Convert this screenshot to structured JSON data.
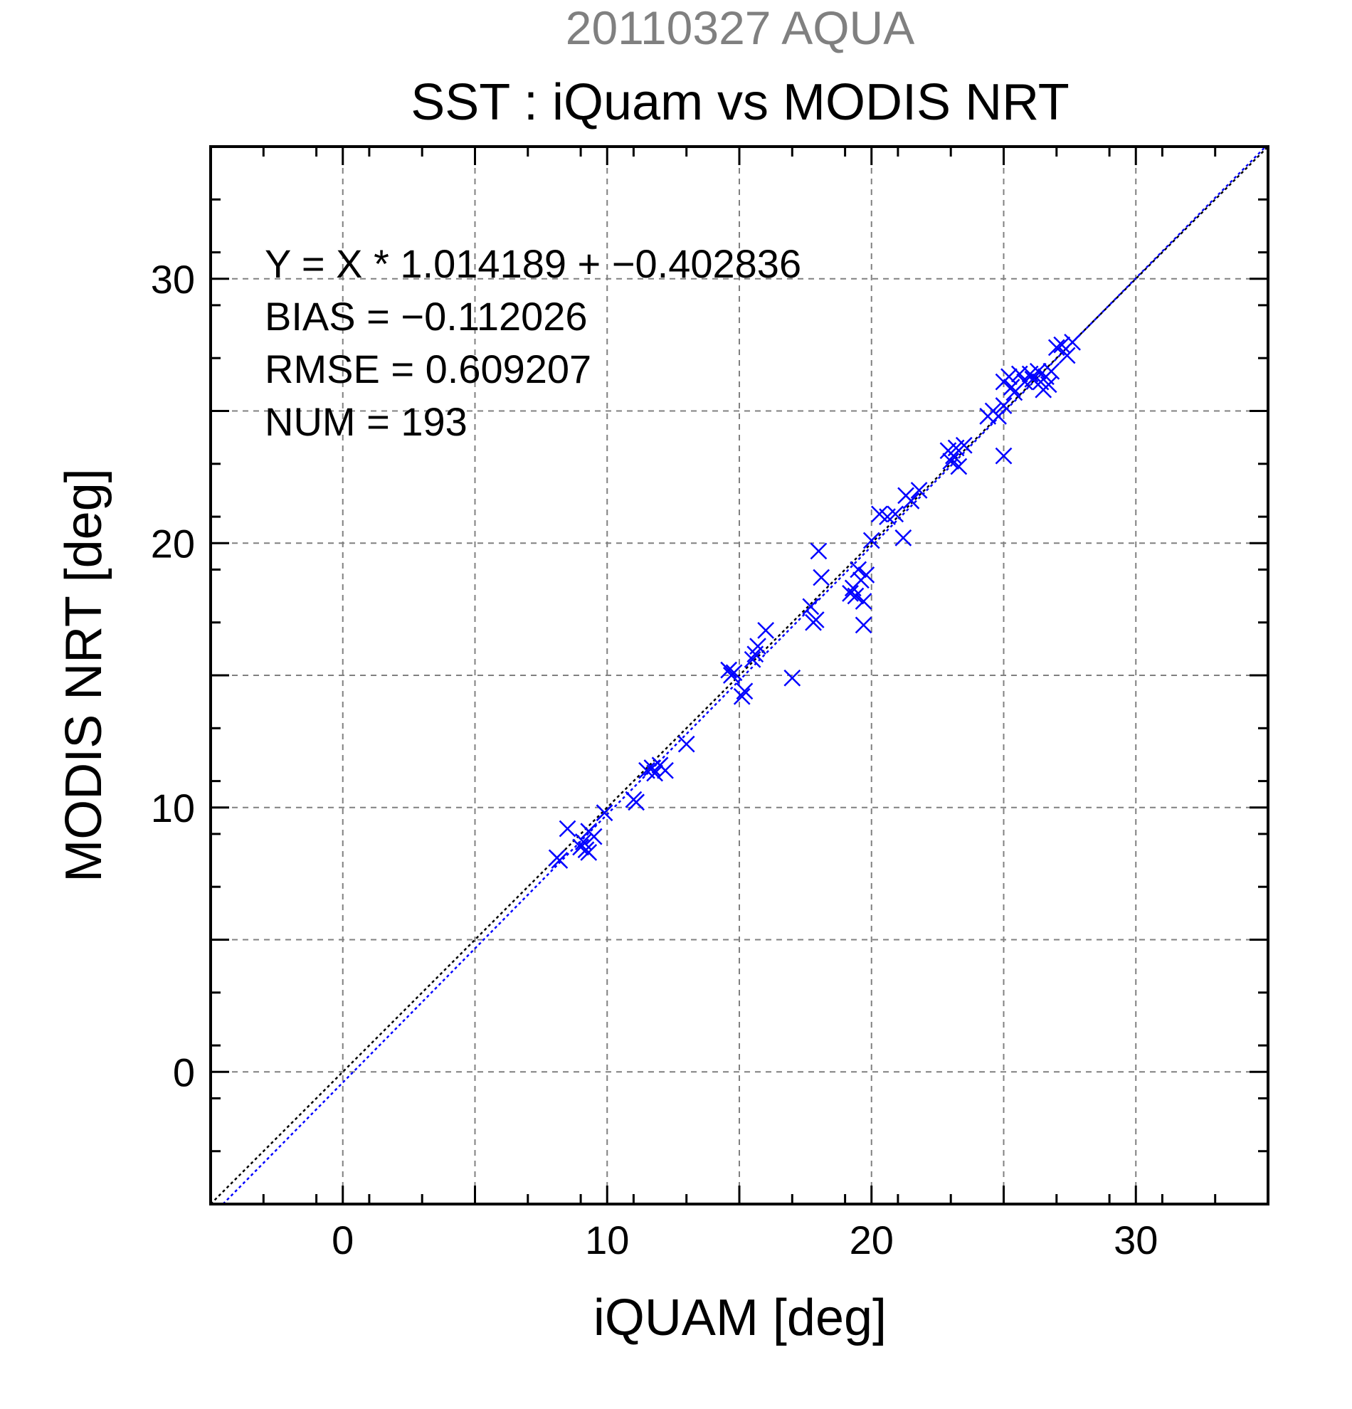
{
  "chart_data": {
    "type": "scatter",
    "title": "SST : iQuam vs MODIS NRT",
    "subtitle": "20110327 AQUA",
    "xlabel": "iQUAM [deg]",
    "ylabel": "MODIS NRT [deg]",
    "xlim": [
      -5,
      35
    ],
    "ylim": [
      -5,
      35
    ],
    "xticks": [
      0,
      10,
      20,
      30
    ],
    "yticks": [
      0,
      10,
      20,
      30
    ],
    "grid": true,
    "annotations": [
      "Y = X * 1.014189 + −0.402836",
      "BIAS = −0.112026",
      "RMSE = 0.609207",
      "NUM = 193"
    ],
    "colors": {
      "points": "#0000ff",
      "fit_line": "#0000ff",
      "identity_line": "#000000",
      "subtitle": "#808080"
    },
    "lines": [
      {
        "kind": "identity",
        "slope": 1,
        "intercept": 0,
        "style": "dotted"
      },
      {
        "kind": "fit",
        "slope": 1.014189,
        "intercept": -0.402836,
        "style": "dotted"
      }
    ],
    "series": [
      {
        "marker": "x",
        "points": [
          [
            8.1,
            8.1
          ],
          [
            8.2,
            8.0
          ],
          [
            8.5,
            9.2
          ],
          [
            9.0,
            8.5
          ],
          [
            9.1,
            8.7
          ],
          [
            9.2,
            8.4
          ],
          [
            9.3,
            8.3
          ],
          [
            9.3,
            9.1
          ],
          [
            9.5,
            8.9
          ],
          [
            9.9,
            9.8
          ],
          [
            11.0,
            10.3
          ],
          [
            11.1,
            10.2
          ],
          [
            11.5,
            11.4
          ],
          [
            11.7,
            11.5
          ],
          [
            11.8,
            11.3
          ],
          [
            12.0,
            11.6
          ],
          [
            12.2,
            11.4
          ],
          [
            13.0,
            12.4
          ],
          [
            14.6,
            15.2
          ],
          [
            14.7,
            15.0
          ],
          [
            14.8,
            15.1
          ],
          [
            15.1,
            14.2
          ],
          [
            15.2,
            14.4
          ],
          [
            15.5,
            15.6
          ],
          [
            15.6,
            15.8
          ],
          [
            15.7,
            16.1
          ],
          [
            16.0,
            16.7
          ],
          [
            17.0,
            14.9
          ],
          [
            17.7,
            17.6
          ],
          [
            17.8,
            17.0
          ],
          [
            17.9,
            17.1
          ],
          [
            18.0,
            19.7
          ],
          [
            18.1,
            18.7
          ],
          [
            19.2,
            18.1
          ],
          [
            19.3,
            18.3
          ],
          [
            19.4,
            18.0
          ],
          [
            19.5,
            19.0
          ],
          [
            19.6,
            18.6
          ],
          [
            19.7,
            17.8
          ],
          [
            19.7,
            16.9
          ],
          [
            19.8,
            18.8
          ],
          [
            20.0,
            20.1
          ],
          [
            20.3,
            21.1
          ],
          [
            20.6,
            21.0
          ],
          [
            20.9,
            21.1
          ],
          [
            21.2,
            20.2
          ],
          [
            21.3,
            21.8
          ],
          [
            21.5,
            21.6
          ],
          [
            21.8,
            22.0
          ],
          [
            22.9,
            23.5
          ],
          [
            23.0,
            23.1
          ],
          [
            23.1,
            23.3
          ],
          [
            23.2,
            23.6
          ],
          [
            23.3,
            22.9
          ],
          [
            23.5,
            23.7
          ],
          [
            24.4,
            24.8
          ],
          [
            24.6,
            25.0
          ],
          [
            24.8,
            24.8
          ],
          [
            25.0,
            25.2
          ],
          [
            25.0,
            23.3
          ],
          [
            25.0,
            26.1
          ],
          [
            25.2,
            26.3
          ],
          [
            25.3,
            25.9
          ],
          [
            25.4,
            25.7
          ],
          [
            25.6,
            26.4
          ],
          [
            25.8,
            26.1
          ],
          [
            26.0,
            26.4
          ],
          [
            26.1,
            26.2
          ],
          [
            26.3,
            26.5
          ],
          [
            26.4,
            26.1
          ],
          [
            26.5,
            25.8
          ],
          [
            26.6,
            26.3
          ],
          [
            26.7,
            26.0
          ],
          [
            26.8,
            26.5
          ],
          [
            27.0,
            27.4
          ],
          [
            27.2,
            27.5
          ],
          [
            27.4,
            27.1
          ],
          [
            27.6,
            27.6
          ]
        ]
      }
    ]
  }
}
